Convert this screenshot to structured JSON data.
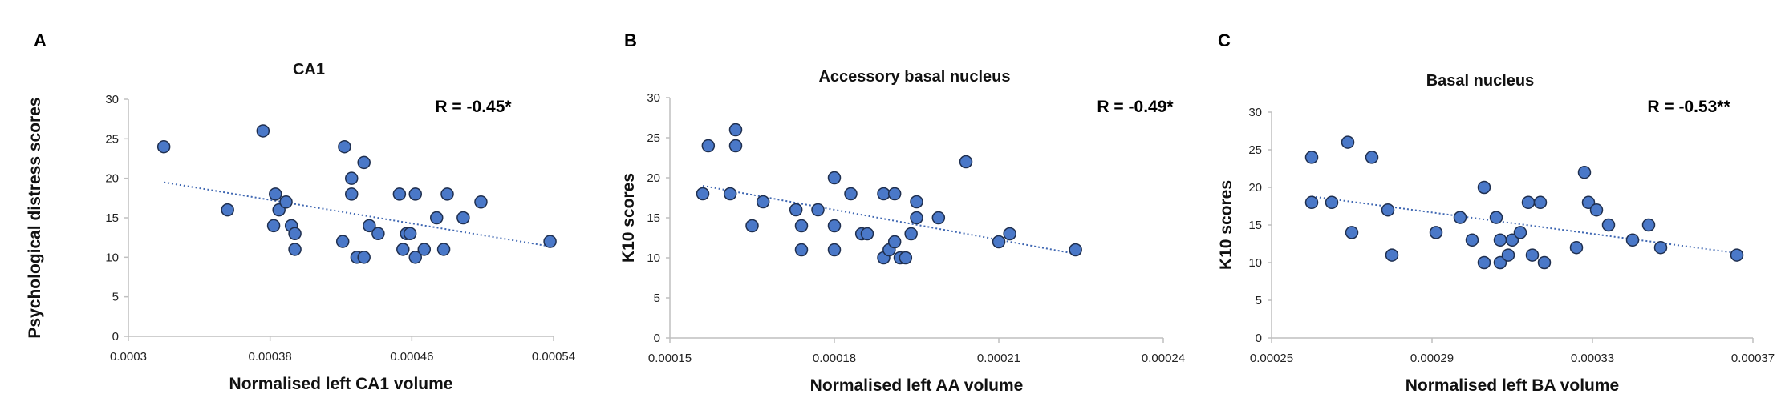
{
  "chart_data": [
    {
      "type": "scatter",
      "panel": "A",
      "title": "CA1",
      "annotation": "R = -0.45*",
      "xlabel": "Normalised left CA1 volume",
      "ylabel": "Psychological distress scores",
      "xlim": [
        0.0003,
        0.00054
      ],
      "ylim": [
        0,
        30
      ],
      "xticks": [
        0.0003,
        0.00038,
        0.00046,
        0.00054
      ],
      "xtick_labels": [
        "0.0003",
        "0.00038",
        "0.00046",
        "0.00054"
      ],
      "yticks": [
        0,
        5,
        10,
        15,
        20,
        25,
        30
      ],
      "ytick_labels": [
        "0",
        "5",
        "10",
        "15",
        "20",
        "25",
        "30"
      ],
      "trendline": {
        "style": "dotted",
        "points": [
          [
            0.00032,
            19.5
          ],
          [
            0.00054,
            11.3
          ]
        ]
      },
      "points": [
        [
          0.00032,
          24
        ],
        [
          0.000356,
          16
        ],
        [
          0.000376,
          26
        ],
        [
          0.000383,
          18
        ],
        [
          0.000385,
          16
        ],
        [
          0.000382,
          14
        ],
        [
          0.000389,
          17
        ],
        [
          0.000392,
          14
        ],
        [
          0.000394,
          13
        ],
        [
          0.000394,
          11
        ],
        [
          0.000422,
          24
        ],
        [
          0.000426,
          20
        ],
        [
          0.000426,
          18
        ],
        [
          0.000421,
          12
        ],
        [
          0.000429,
          10
        ],
        [
          0.000433,
          22
        ],
        [
          0.000433,
          10
        ],
        [
          0.000436,
          14
        ],
        [
          0.000441,
          13
        ],
        [
          0.000453,
          18
        ],
        [
          0.000455,
          11
        ],
        [
          0.000457,
          13
        ],
        [
          0.000459,
          13
        ],
        [
          0.000462,
          18
        ],
        [
          0.000462,
          10
        ],
        [
          0.000467,
          11
        ],
        [
          0.000474,
          15
        ],
        [
          0.000478,
          11
        ],
        [
          0.00048,
          18
        ],
        [
          0.000489,
          15
        ],
        [
          0.000499,
          17
        ],
        [
          0.000538,
          12
        ]
      ],
      "marker_color": "#4a78c8",
      "marker_edge": "#1f2f4f",
      "trend_color": "#3f67b2"
    },
    {
      "type": "scatter",
      "panel": "B",
      "title": "Accessory basal nucleus",
      "annotation": "R = -0.49*",
      "xlabel": "Normalised left AA volume",
      "ylabel": "K10 scores",
      "xlim": [
        0.00015,
        0.00024
      ],
      "ylim": [
        0,
        30
      ],
      "xticks": [
        0.00015,
        0.00018,
        0.00021,
        0.00024
      ],
      "xtick_labels": [
        "0.00015",
        "0.00018",
        "0.00021",
        "0.00024"
      ],
      "yticks": [
        0,
        5,
        10,
        15,
        20,
        25,
        30
      ],
      "ytick_labels": [
        "0",
        "5",
        "10",
        "15",
        "20",
        "25",
        "30"
      ],
      "trendline": {
        "style": "dotted",
        "points": [
          [
            0.000156,
            19
          ],
          [
            0.000224,
            10.5
          ]
        ]
      },
      "points": [
        [
          0.000156,
          18
        ],
        [
          0.000157,
          24
        ],
        [
          0.000161,
          18
        ],
        [
          0.000162,
          24
        ],
        [
          0.000162,
          26
        ],
        [
          0.000165,
          14
        ],
        [
          0.000167,
          17
        ],
        [
          0.000173,
          16
        ],
        [
          0.000174,
          14
        ],
        [
          0.000174,
          11
        ],
        [
          0.000177,
          16
        ],
        [
          0.00018,
          20
        ],
        [
          0.00018,
          14
        ],
        [
          0.00018,
          11
        ],
        [
          0.000183,
          18
        ],
        [
          0.000185,
          13
        ],
        [
          0.000186,
          13
        ],
        [
          0.000189,
          18
        ],
        [
          0.000189,
          10
        ],
        [
          0.000191,
          18
        ],
        [
          0.00019,
          11
        ],
        [
          0.000191,
          12
        ],
        [
          0.000192,
          10
        ],
        [
          0.000193,
          10
        ],
        [
          0.000194,
          13
        ],
        [
          0.000195,
          17
        ],
        [
          0.000195,
          15
        ],
        [
          0.000199,
          15
        ],
        [
          0.000204,
          22
        ],
        [
          0.00021,
          12
        ],
        [
          0.000212,
          13
        ],
        [
          0.000224,
          11
        ]
      ],
      "marker_color": "#4a78c8",
      "marker_edge": "#1f2f4f",
      "trend_color": "#3f67b2"
    },
    {
      "type": "scatter",
      "panel": "C",
      "title": "Basal nucleus",
      "annotation": "R = -0.53**",
      "xlabel": "Normalised left BA volume",
      "ylabel": "K10 scores",
      "xlim": [
        0.00025,
        0.00037
      ],
      "ylim": [
        0,
        30
      ],
      "xticks": [
        0.00025,
        0.00029,
        0.00033,
        0.00037
      ],
      "xtick_labels": [
        "0.00025",
        "0.00029",
        "0.00033",
        "0.00037"
      ],
      "yticks": [
        0,
        5,
        10,
        15,
        20,
        25,
        30
      ],
      "ytick_labels": [
        "0",
        "5",
        "10",
        "15",
        "20",
        "25",
        "30"
      ],
      "trendline": {
        "style": "dotted",
        "points": [
          [
            0.00026,
            18.8
          ],
          [
            0.000367,
            11.2
          ]
        ]
      },
      "points": [
        [
          0.00026,
          24
        ],
        [
          0.00026,
          18
        ],
        [
          0.000265,
          18
        ],
        [
          0.000269,
          26
        ],
        [
          0.00027,
          14
        ],
        [
          0.000275,
          24
        ],
        [
          0.000279,
          17
        ],
        [
          0.00028,
          11
        ],
        [
          0.000291,
          14
        ],
        [
          0.000297,
          16
        ],
        [
          0.0003,
          13
        ],
        [
          0.000303,
          20
        ],
        [
          0.000303,
          10
        ],
        [
          0.000306,
          16
        ],
        [
          0.000307,
          13
        ],
        [
          0.000307,
          10
        ],
        [
          0.000309,
          11
        ],
        [
          0.00031,
          13
        ],
        [
          0.000312,
          14
        ],
        [
          0.000314,
          18
        ],
        [
          0.000315,
          11
        ],
        [
          0.000317,
          18
        ],
        [
          0.000318,
          10
        ],
        [
          0.000326,
          12
        ],
        [
          0.000328,
          22
        ],
        [
          0.000329,
          18
        ],
        [
          0.000331,
          17
        ],
        [
          0.000334,
          15
        ],
        [
          0.00034,
          13
        ],
        [
          0.000344,
          15
        ],
        [
          0.000347,
          12
        ],
        [
          0.000366,
          11
        ]
      ],
      "marker_color": "#4a78c8",
      "marker_edge": "#1f2f4f",
      "trend_color": "#3f67b2"
    }
  ]
}
